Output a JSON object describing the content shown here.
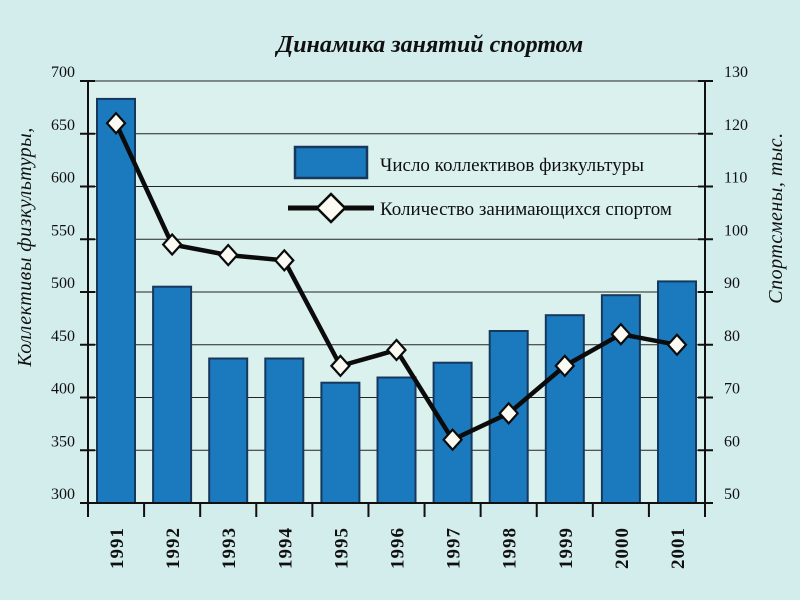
{
  "page": {
    "background": "#d3ecec",
    "plot_background": "#dbf1ee"
  },
  "title": "Динамика занятий спортом",
  "chart_data": {
    "type": "bar",
    "subtype": "combo-bar-line-dual-axis",
    "categories": [
      "1991",
      "1992",
      "1993",
      "1994",
      "1995",
      "1996",
      "1997",
      "1998",
      "1999",
      "2000",
      "2001"
    ],
    "series": [
      {
        "name": "Число коллективов физкультуры",
        "type": "bar",
        "axis": "left",
        "color": "#1b79bd",
        "border_color": "#16385c",
        "values": [
          683,
          505,
          437,
          437,
          414,
          419,
          433,
          463,
          478,
          497,
          510
        ]
      },
      {
        "name": "Количество занимающихся спортом",
        "type": "line",
        "axis": "right",
        "color": "#0b0b0b",
        "marker": "diamond",
        "marker_fill": "#fbfbf3",
        "values": [
          122,
          99,
          97,
          96,
          76,
          79,
          62,
          67,
          76,
          82,
          80
        ]
      }
    ],
    "left_axis": {
      "label": "Коллективы физкультуры,",
      "min": 300,
      "max": 700,
      "step": 50
    },
    "right_axis": {
      "label": "Спортсмены, тыс.",
      "min": 50,
      "max": 130,
      "step": 10
    },
    "grid": true,
    "legend_position": "inside-top-center"
  }
}
